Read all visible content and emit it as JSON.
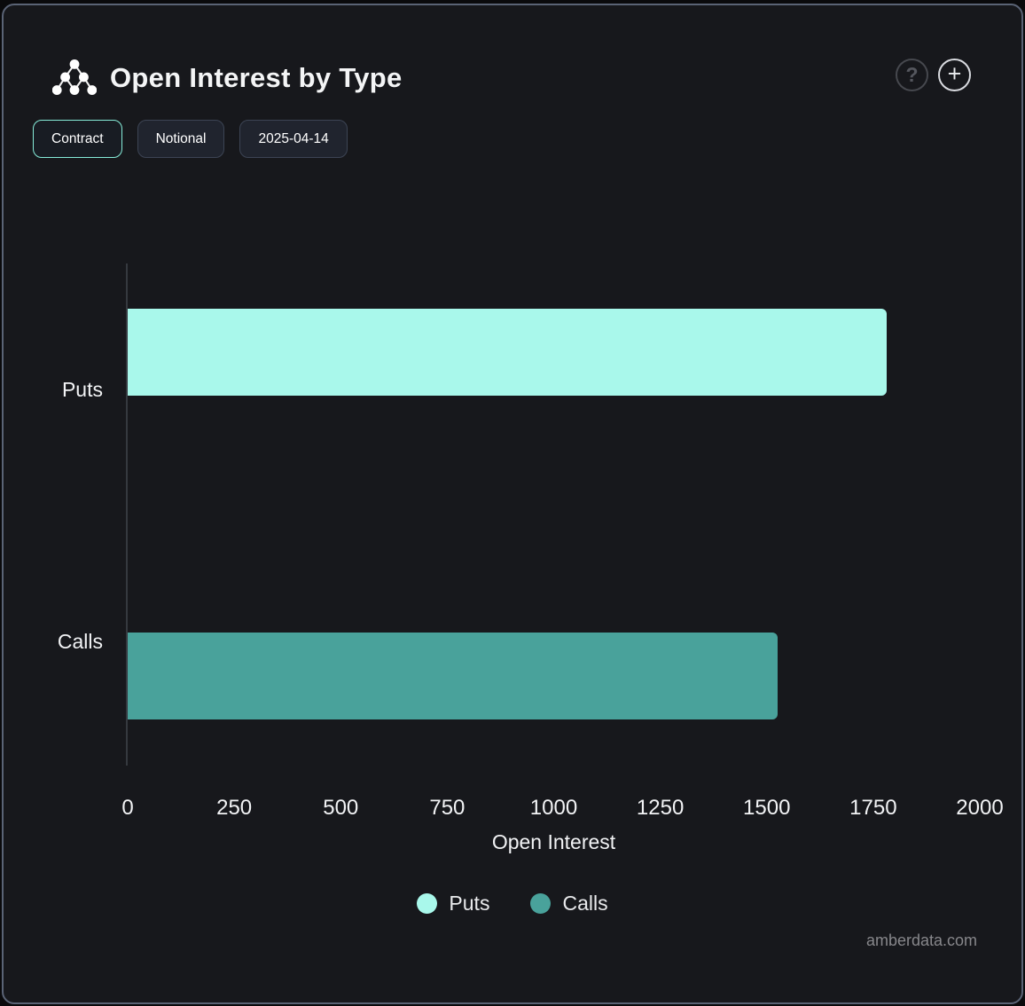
{
  "header": {
    "title": "Open Interest by Type",
    "help_label": "?",
    "add_label": "+"
  },
  "controls": {
    "contract_label": "Contract",
    "notional_label": "Notional",
    "date_label": "2025-04-14"
  },
  "chart_data": {
    "type": "bar",
    "orientation": "horizontal",
    "title": "Open Interest by Type",
    "categories": [
      "Puts",
      "Calls"
    ],
    "series": [
      {
        "name": "Puts",
        "value": 1782,
        "color": "#a9f8eb"
      },
      {
        "name": "Calls",
        "value": 1526,
        "color": "#49a29b"
      }
    ],
    "xlabel": "Open Interest",
    "ylabel": "",
    "xticks": [
      0,
      250,
      500,
      750,
      1000,
      1250,
      1500,
      1750,
      2000
    ],
    "xlim": [
      0,
      2000
    ],
    "grid": false,
    "legend_position": "bottom"
  },
  "footer": {
    "watermark": "amberdata.com"
  },
  "colors": {
    "card_background": "#17181c",
    "card_border": "#5a6375",
    "puts": "#a9f8eb",
    "calls": "#49a29b",
    "active_chip_border": "#86ecd9",
    "text": "#f2f3f5"
  }
}
